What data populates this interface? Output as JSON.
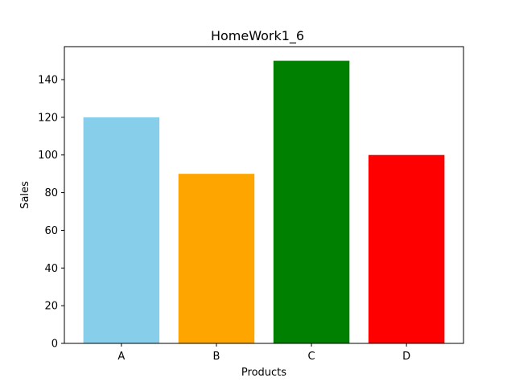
{
  "chart_data": {
    "type": "bar",
    "title": "HomeWork1_6",
    "xlabel": "Products",
    "ylabel": "Sales",
    "categories": [
      "A",
      "B",
      "C",
      "D"
    ],
    "values": [
      120,
      90,
      150,
      100
    ],
    "colors": [
      "#87ceeb",
      "#ffa500",
      "#008000",
      "#ff0000"
    ],
    "ylim": [
      0,
      157.5
    ],
    "yticks": [
      0,
      20,
      40,
      60,
      80,
      100,
      120,
      140
    ],
    "grid": false
  }
}
